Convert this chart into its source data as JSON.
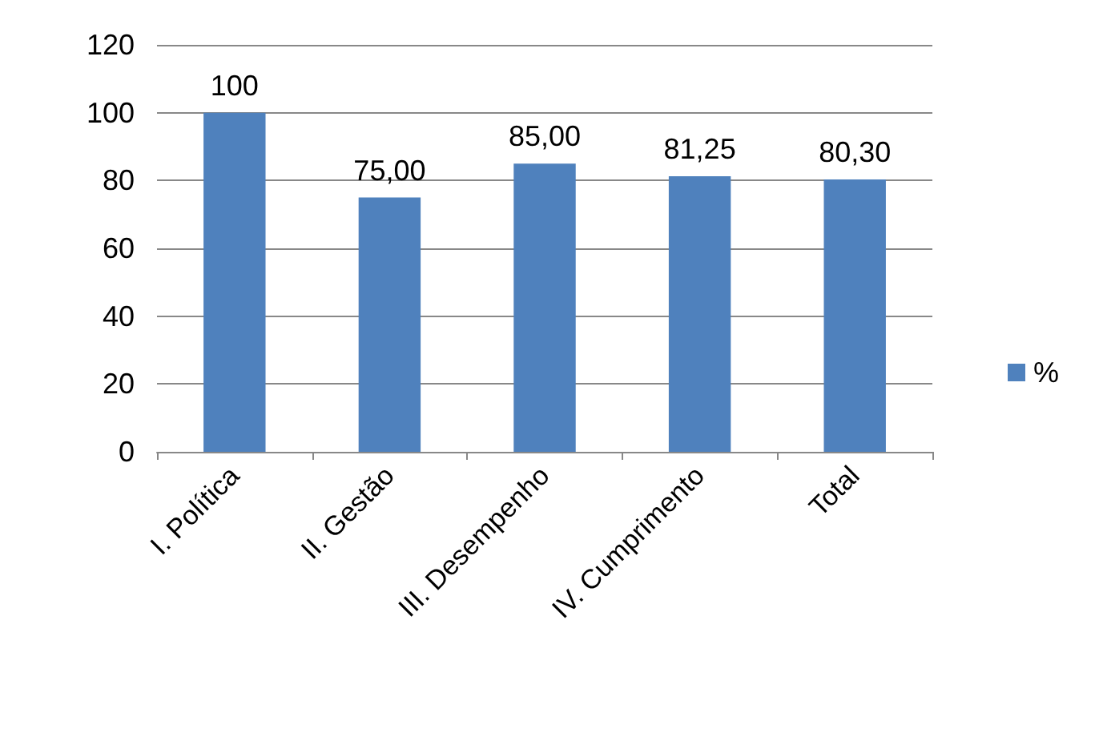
{
  "chart_data": {
    "type": "bar",
    "categories": [
      "I. Política",
      "II. Gestão",
      "III. Desempenho",
      "IV. Cumprimento",
      "Total"
    ],
    "series": [
      {
        "name": "%",
        "color": "#4f81bd",
        "values": [
          100,
          75,
          85,
          81.25,
          80.3
        ],
        "value_labels": [
          "100",
          "75,00",
          "85,00",
          "81,25",
          "80,30"
        ]
      }
    ],
    "ylim": [
      0,
      120
    ],
    "yticks": [
      0,
      20,
      40,
      60,
      80,
      100,
      120
    ],
    "grid": "y",
    "legend": "right"
  }
}
